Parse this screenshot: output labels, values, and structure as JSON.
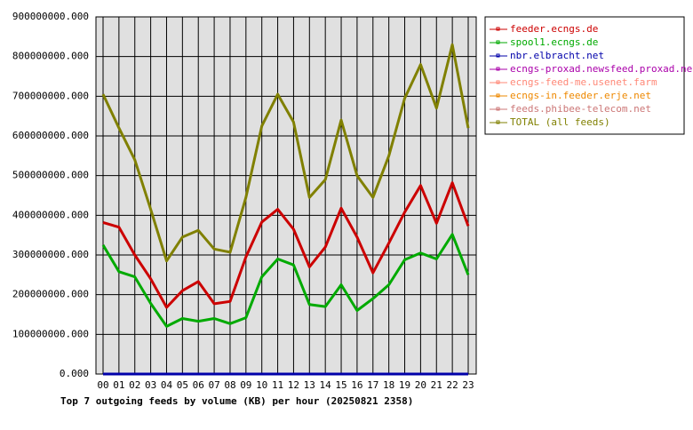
{
  "chart_data": {
    "type": "line",
    "title": "Top 7 outgoing feeds by volume (KB) per hour (20250821 2358)",
    "categories": [
      "00",
      "01",
      "02",
      "03",
      "04",
      "05",
      "06",
      "07",
      "08",
      "09",
      "10",
      "11",
      "12",
      "13",
      "14",
      "15",
      "16",
      "17",
      "18",
      "19",
      "20",
      "21",
      "22",
      "23"
    ],
    "ylim": [
      0,
      900000000
    ],
    "yticks": [
      {
        "value": 0,
        "label": "0.000"
      },
      {
        "value": 100000000,
        "label": "100000000.000"
      },
      {
        "value": 200000000,
        "label": "200000000.000"
      },
      {
        "value": 300000000,
        "label": "300000000.000"
      },
      {
        "value": 400000000,
        "label": "400000000.000"
      },
      {
        "value": 500000000,
        "label": "500000000.000"
      },
      {
        "value": 600000000,
        "label": "600000000.000"
      },
      {
        "value": 700000000,
        "label": "700000000.000"
      },
      {
        "value": 800000000,
        "label": "800000000.000"
      },
      {
        "value": 900000000,
        "label": "900000000.000"
      }
    ],
    "grid": true,
    "legend": "right",
    "series": [
      {
        "name": "feeder.ecngs.de",
        "color": "#cc0000",
        "values": [
          382000000,
          370000000,
          300000000,
          240000000,
          168000000,
          210000000,
          233000000,
          177000000,
          183000000,
          295000000,
          383000000,
          415000000,
          365000000,
          270000000,
          320000000,
          418000000,
          345000000,
          255000000,
          330000000,
          408000000,
          475000000,
          380000000,
          482000000,
          373000000
        ]
      },
      {
        "name": "spool1.ecngs.de",
        "color": "#00aa00",
        "values": [
          325000000,
          258000000,
          245000000,
          178000000,
          120000000,
          140000000,
          133000000,
          140000000,
          127000000,
          142000000,
          245000000,
          290000000,
          275000000,
          175000000,
          170000000,
          225000000,
          160000000,
          190000000,
          225000000,
          288000000,
          305000000,
          290000000,
          352000000,
          250000000
        ]
      },
      {
        "name": "nbr.elbracht.net",
        "color": "#0000aa",
        "values": [
          0,
          0,
          0,
          0,
          0,
          0,
          0,
          0,
          0,
          0,
          0,
          0,
          0,
          0,
          0,
          0,
          0,
          0,
          0,
          0,
          0,
          0,
          0,
          0
        ]
      },
      {
        "name": "ecngs-proxad.newsfeed.proxad.net",
        "color": "#aa00aa",
        "values": [
          0,
          0,
          0,
          0,
          0,
          0,
          0,
          0,
          0,
          0,
          0,
          0,
          0,
          0,
          0,
          0,
          0,
          0,
          0,
          0,
          0,
          0,
          0,
          0
        ]
      },
      {
        "name": "ecngs-feed-me.usenet.farm",
        "color": "#ff8877",
        "values": [
          0,
          0,
          0,
          0,
          0,
          0,
          0,
          0,
          0,
          0,
          0,
          0,
          0,
          0,
          0,
          0,
          0,
          0,
          0,
          0,
          0,
          0,
          0,
          0
        ]
      },
      {
        "name": "ecngs-in.feeder.erje.net",
        "color": "#ee8800",
        "values": [
          0,
          0,
          0,
          0,
          0,
          0,
          0,
          0,
          0,
          0,
          0,
          0,
          0,
          0,
          0,
          0,
          0,
          0,
          0,
          0,
          0,
          0,
          0,
          0
        ]
      },
      {
        "name": "feeds.phibee-telecom.net",
        "color": "#cc7777",
        "values": [
          0,
          0,
          0,
          0,
          0,
          0,
          0,
          0,
          0,
          0,
          0,
          0,
          0,
          0,
          0,
          0,
          0,
          0,
          0,
          0,
          0,
          0,
          0,
          0
        ]
      },
      {
        "name": "TOTAL (all feeds)",
        "color": "#808000",
        "values": [
          705000000,
          620000000,
          540000000,
          415000000,
          285000000,
          345000000,
          362000000,
          315000000,
          307000000,
          445000000,
          625000000,
          705000000,
          635000000,
          445000000,
          490000000,
          640000000,
          500000000,
          445000000,
          550000000,
          695000000,
          780000000,
          670000000,
          830000000,
          620000000
        ]
      }
    ]
  }
}
